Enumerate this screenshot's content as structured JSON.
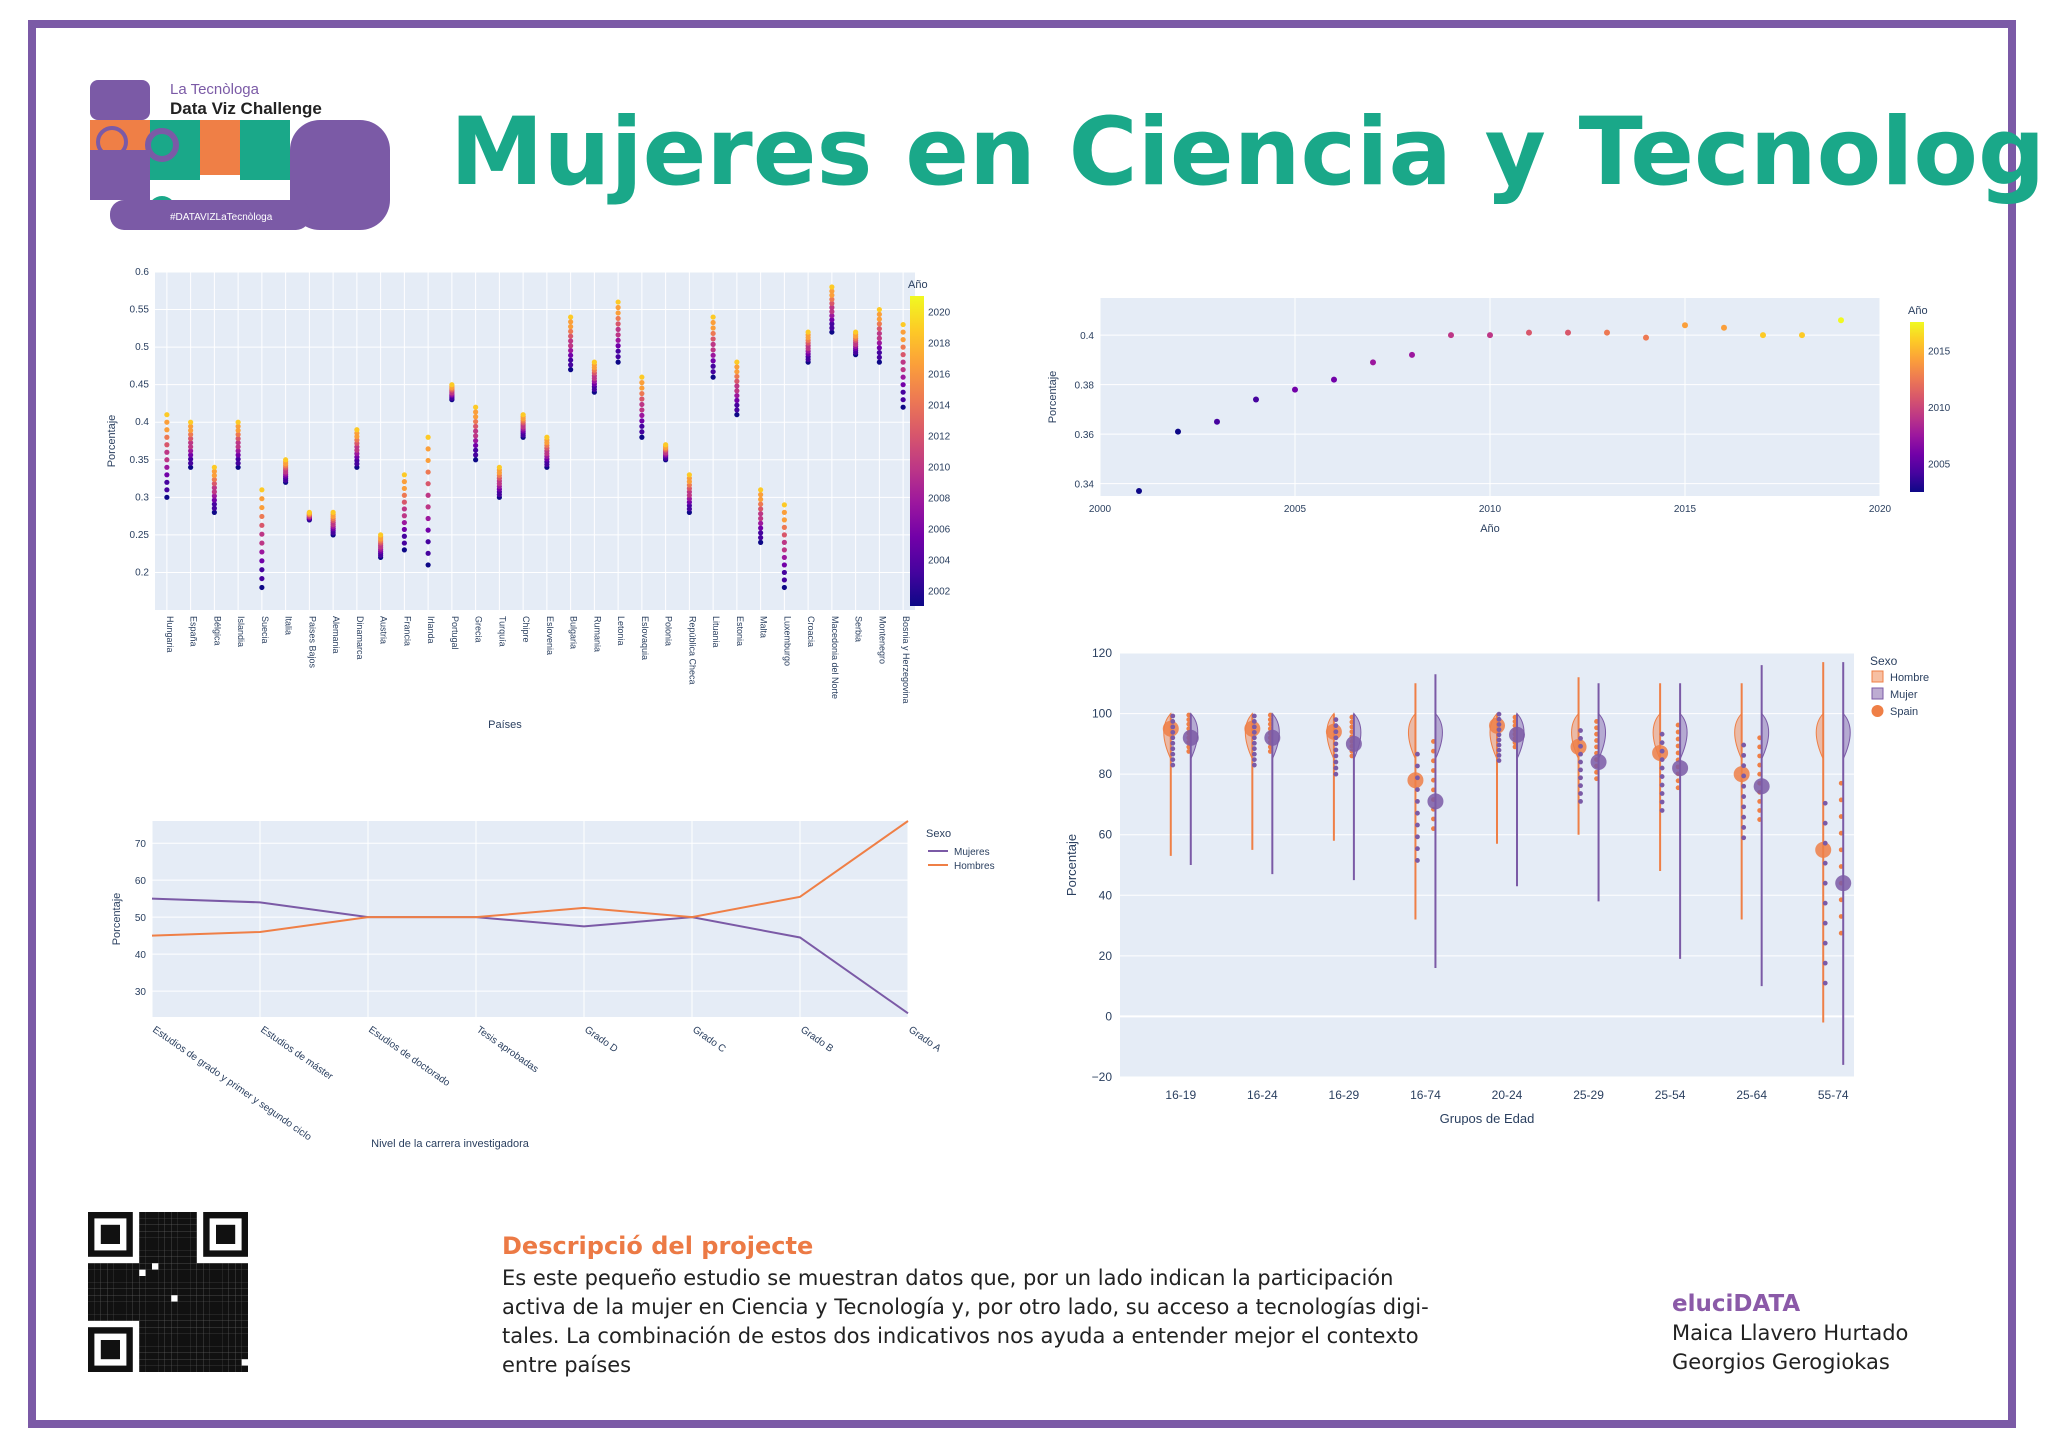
{
  "header": {
    "title": "Mujeres en Ciencia y Tecnología",
    "logo_line1": "La Tecnòloga",
    "logo_line2": "Data Viz Challenge",
    "logo_tag": "#DATAVIZLaTecnòloga"
  },
  "description": {
    "heading": "Descripció del projecte",
    "line1": "Es este pequeño estudio se muestran datos que, por un lado indican la participación",
    "line2": "activa de la mujer en Ciencia y Tecnología y, por otro lado,  su acceso a tecnologías digi-",
    "line3": "tales. La combinación de estos dos indicativos nos ayuda a entender mejor el contexto",
    "line4": "entre países"
  },
  "authors": {
    "brand": "eluciDATA",
    "author1": "Maica Llavero Hurtado",
    "author2": "Georgios Gerogiokas"
  },
  "colors": {
    "title": "#1aa889",
    "frame": "#7b5aa6",
    "hombre": "#ef7f46",
    "mujer": "#7b5aa6",
    "plot_bg": "#e5ecf6"
  },
  "chart_data": [
    {
      "type": "scatter",
      "xlabel": "Países",
      "ylabel": "Porcentaje",
      "ylim": [
        0.15,
        0.6
      ],
      "yticks": [
        "0.2",
        "0.25",
        "0.3",
        "0.35",
        "0.4",
        "0.45",
        "0.5",
        "0.55",
        "0.6"
      ],
      "colorbar_title": "Año",
      "colorbar_ticks": [
        "2002",
        "2004",
        "2006",
        "2008",
        "2010",
        "2012",
        "2014",
        "2016",
        "2018",
        "2020"
      ],
      "categories": [
        "Hungaria",
        "España",
        "Bélgica",
        "Islandia",
        "Suecia",
        "Italia",
        "Paises Bajos",
        "Alemania",
        "Dinamarca",
        "Austria",
        "Francia",
        "Irlanda",
        "Portugal",
        "Grecia",
        "Turquía",
        "Chipre",
        "Eslovenia",
        "Bulgaria",
        "Rumania",
        "Letonia",
        "Eslovaquia",
        "Polonia",
        "República Checa",
        "Lituania",
        "Estonia",
        "Malta",
        "Luxemburgo",
        "Croacia",
        "Macedonia del Norte",
        "Serbia",
        "Montenegro",
        "Bosnia y Herzegovina"
      ],
      "ranges": [
        [
          0.3,
          0.41
        ],
        [
          0.34,
          0.4
        ],
        [
          0.28,
          0.34
        ],
        [
          0.34,
          0.4
        ],
        [
          0.18,
          0.31
        ],
        [
          0.32,
          0.35
        ],
        [
          0.27,
          0.28
        ],
        [
          0.25,
          0.28
        ],
        [
          0.34,
          0.39
        ],
        [
          0.22,
          0.25
        ],
        [
          0.23,
          0.33
        ],
        [
          0.21,
          0.38
        ],
        [
          0.43,
          0.45
        ],
        [
          0.35,
          0.42
        ],
        [
          0.3,
          0.34
        ],
        [
          0.38,
          0.41
        ],
        [
          0.34,
          0.38
        ],
        [
          0.47,
          0.54
        ],
        [
          0.44,
          0.48
        ],
        [
          0.48,
          0.56
        ],
        [
          0.38,
          0.46
        ],
        [
          0.35,
          0.37
        ],
        [
          0.28,
          0.33
        ],
        [
          0.46,
          0.54
        ],
        [
          0.41,
          0.48
        ],
        [
          0.24,
          0.31
        ],
        [
          0.18,
          0.29
        ],
        [
          0.48,
          0.52
        ],
        [
          0.52,
          0.58
        ],
        [
          0.49,
          0.52
        ],
        [
          0.48,
          0.55
        ],
        [
          0.42,
          0.53
        ]
      ]
    },
    {
      "type": "scatter",
      "xlabel": "Año",
      "ylabel": "Porcentaje",
      "xlim": [
        2000,
        2020
      ],
      "ylim": [
        0.335,
        0.415
      ],
      "xticks": [
        "2000",
        "2005",
        "2010",
        "2015",
        "2020"
      ],
      "yticks": [
        "0.34",
        "0.36",
        "0.38",
        "0.4"
      ],
      "colorbar_title": "Año",
      "colorbar_ticks": [
        "2005",
        "2010",
        "2015"
      ],
      "x": [
        2001,
        2002,
        2003,
        2004,
        2005,
        2006,
        2007,
        2008,
        2009,
        2010,
        2011,
        2012,
        2013,
        2014,
        2015,
        2016,
        2017,
        2018,
        2019
      ],
      "y": [
        0.337,
        0.361,
        0.365,
        0.374,
        0.378,
        0.382,
        0.389,
        0.392,
        0.4,
        0.4,
        0.401,
        0.401,
        0.401,
        0.399,
        0.404,
        0.403,
        0.4,
        0.4,
        0.406
      ]
    },
    {
      "type": "line",
      "xlabel": "Nivel de la carrera investigadora",
      "ylabel": "Porcentaje",
      "ylim": [
        23,
        76
      ],
      "yticks": [
        "30",
        "40",
        "50",
        "60",
        "70"
      ],
      "legend_title": "Sexo",
      "categories": [
        "Estudios de grado y primer y segundo ciclo",
        "Estudios de máster",
        "Esudios de doctorado",
        "Tesis aprobadas",
        "Grado D",
        "Grado C",
        "Grado B",
        "Grado A"
      ],
      "series": [
        {
          "name": "Mujeres",
          "values": [
            55,
            54,
            50,
            50,
            47.5,
            50,
            44.5,
            24
          ]
        },
        {
          "name": "Hombres",
          "values": [
            45,
            46,
            50,
            50,
            52.5,
            50,
            55.5,
            76
          ]
        }
      ]
    },
    {
      "type": "violin",
      "xlabel": "Grupos de Edad",
      "ylabel": "Porcentaje",
      "ylim": [
        -20,
        120
      ],
      "yticks": [
        "−20",
        "0",
        "20",
        "40",
        "60",
        "80",
        "100",
        "120"
      ],
      "legend_title": "Sexo",
      "legend": [
        "Hombre",
        "Mujer",
        "Spain"
      ],
      "categories": [
        "16-19",
        "16-24",
        "16-29",
        "16-74",
        "20-24",
        "25-29",
        "25-54",
        "25-64",
        "55-74"
      ],
      "series": [
        {
          "name": "Hombre",
          "min": [
            53,
            55,
            58,
            32,
            57,
            60,
            48,
            32,
            -2
          ],
          "max": [
            100,
            100,
            100,
            110,
            100,
            112,
            110,
            110,
            117
          ],
          "spain": [
            95,
            95,
            94,
            78,
            96,
            89,
            87,
            80,
            55
          ]
        },
        {
          "name": "Mujer",
          "min": [
            50,
            47,
            45,
            16,
            43,
            38,
            19,
            10,
            -16
          ],
          "max": [
            100,
            100,
            100,
            113,
            100,
            110,
            110,
            116,
            117
          ],
          "spain": [
            92,
            92,
            90,
            71,
            93,
            84,
            82,
            76,
            44
          ]
        }
      ]
    }
  ]
}
